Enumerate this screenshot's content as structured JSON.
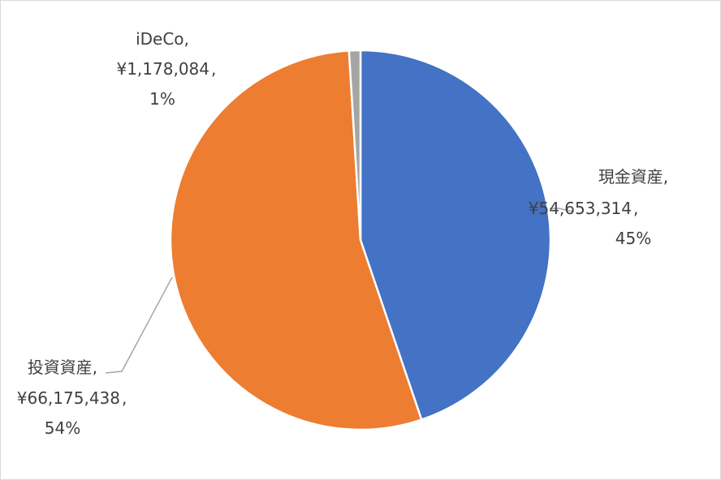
{
  "chart_data": {
    "type": "pie",
    "slices": [
      {
        "name": "現金資産",
        "value": 54653314,
        "value_label": "¥54,653,314",
        "percent_label": "45%",
        "color": "#4472C4"
      },
      {
        "name": "投資資産",
        "value": 66175438,
        "value_label": "¥66,175,438",
        "percent_label": "54%",
        "color": "#ED7D31"
      },
      {
        "name": "iDeCo",
        "value": 1178084,
        "value_label": "¥1,178,084",
        "percent_label": "1%",
        "color": "#A5A5A5"
      }
    ],
    "start_angle": "12 o'clock",
    "direction": "clockwise",
    "data_labels": "category name, value, percentage",
    "legend": "none",
    "title": ""
  }
}
